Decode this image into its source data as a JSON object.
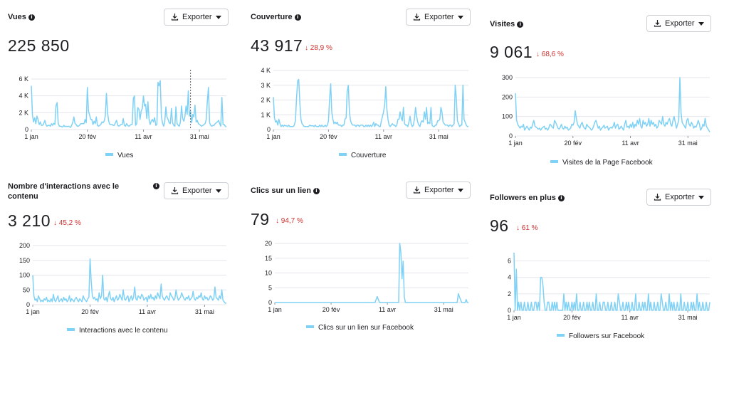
{
  "export_label": "Exporter",
  "series_color": "#7fd1f5",
  "grid_color": "#e4e6eb",
  "delta_color": "#d0312d",
  "chart_data": [
    {
      "id": "vues",
      "type": "line",
      "title": "Vues",
      "total": "225 850",
      "delta": "",
      "legend": "Vues",
      "ylim": [
        0,
        6000
      ],
      "yticks": [
        {
          "v": 0,
          "label": "0"
        },
        {
          "v": 2000,
          "label": "2 K"
        },
        {
          "v": 4000,
          "label": "4 K"
        },
        {
          "v": 6000,
          "label": "6 K"
        }
      ],
      "xticks": [
        {
          "i": 0,
          "label": "1 jan"
        },
        {
          "i": 50,
          "label": "20 fév"
        },
        {
          "i": 100,
          "label": "11 avr"
        },
        {
          "i": 150,
          "label": "31 mai"
        }
      ],
      "values": [
        5200,
        1700,
        900,
        1400,
        700,
        1600,
        1200,
        600,
        900,
        500,
        500,
        650,
        1100,
        600,
        400,
        500,
        500,
        400,
        700,
        500,
        750,
        600,
        2800,
        3200,
        700,
        400,
        400,
        350,
        300,
        500,
        350,
        400,
        350,
        400,
        350,
        250,
        500,
        900,
        1500,
        700,
        600,
        400,
        400,
        500,
        700,
        700,
        700,
        700,
        1200,
        800,
        5000,
        2200,
        1700,
        1200,
        1200,
        600,
        1000,
        700,
        1500,
        500,
        400,
        500,
        600,
        900,
        800,
        1000,
        1600,
        4300,
        2000,
        1000,
        600,
        600,
        600,
        500,
        500,
        800,
        1100,
        500,
        400,
        500,
        600,
        600,
        1300,
        500,
        400,
        700,
        500,
        400,
        500,
        600,
        600,
        3700,
        4000,
        500,
        700,
        2600,
        2400,
        1200,
        2200,
        2500,
        4000,
        2800,
        3000,
        1300,
        3300,
        1300,
        600,
        1000,
        1200,
        900,
        1400,
        500,
        600,
        5600,
        5200,
        5800,
        1600,
        800,
        400,
        900,
        2700,
        1500,
        1200,
        800,
        700,
        2500,
        800,
        500,
        400,
        2700,
        700,
        500,
        400,
        900,
        2800,
        1300,
        1000,
        1500,
        2800,
        1800,
        4600,
        1600,
        2200,
        800,
        1800,
        1500,
        2900,
        900,
        1100,
        700,
        600,
        500,
        400,
        500,
        600,
        700,
        1200,
        3300,
        5000,
        800,
        500,
        400,
        500,
        500,
        700,
        800,
        900,
        1100,
        700,
        400,
        3800,
        600,
        600,
        400,
        300
      ],
      "annotation": {
        "i": 142
      }
    },
    {
      "id": "couverture",
      "type": "line",
      "title": "Couverture",
      "total": "43 917",
      "delta": "↓ 28,9 %",
      "legend": "Couverture",
      "ylim": [
        0,
        4000
      ],
      "yticks": [
        {
          "v": 0,
          "label": "0"
        },
        {
          "v": 1000,
          "label": "1 K"
        },
        {
          "v": 2000,
          "label": "2 K"
        },
        {
          "v": 3000,
          "label": "3 K"
        },
        {
          "v": 4000,
          "label": "4 K"
        }
      ],
      "xticks": [
        {
          "i": 0,
          "label": "1 jan"
        },
        {
          "i": 50,
          "label": "20 fév"
        },
        {
          "i": 100,
          "label": "11 avr"
        },
        {
          "i": 150,
          "label": "31 mai"
        }
      ],
      "values": [
        2200,
        800,
        500,
        600,
        300,
        700,
        400,
        200,
        300,
        200,
        300,
        250,
        250,
        200,
        300,
        200,
        200,
        200,
        200,
        300,
        600,
        2100,
        3300,
        3400,
        1800,
        700,
        400,
        300,
        200,
        200,
        200,
        200,
        200,
        300,
        250,
        250,
        250,
        200,
        300,
        200,
        200,
        200,
        300,
        200,
        300,
        200,
        200,
        300,
        200,
        300,
        600,
        2000,
        3100,
        1200,
        700,
        400,
        500,
        400,
        500,
        300,
        300,
        300,
        200,
        300,
        300,
        700,
        800,
        2600,
        3000,
        1200,
        600,
        400,
        300,
        300,
        300,
        200,
        300,
        300,
        200,
        300,
        300,
        300,
        200,
        200,
        300,
        200,
        300,
        200,
        300,
        200,
        300,
        500,
        200,
        400,
        300,
        300,
        200,
        200,
        600,
        900,
        1200,
        1700,
        2900,
        1400,
        700,
        300,
        200,
        300,
        400,
        300,
        300,
        200,
        300,
        700,
        700,
        1200,
        800,
        600,
        1500,
        400,
        300,
        300,
        200,
        500,
        900,
        400,
        200,
        300,
        700,
        1500,
        900,
        500,
        300,
        200,
        500,
        600,
        500,
        1200,
        700,
        1500,
        400,
        500,
        400,
        1500,
        300,
        200,
        200,
        300,
        300,
        600,
        600,
        700,
        1500,
        1200,
        500,
        400,
        300,
        300,
        300,
        200,
        300,
        300,
        200,
        300,
        400,
        3000,
        2100,
        600,
        400,
        200,
        300,
        300,
        3000,
        700,
        500,
        300,
        200,
        200
      ],
      "annotation": null
    },
    {
      "id": "visites",
      "type": "line",
      "title": "Visites",
      "total": "9 061",
      "delta": "↓ 68,6 %",
      "legend": "Visites de la Page Facebook",
      "ylim": [
        0,
        300
      ],
      "yticks": [
        {
          "v": 0,
          "label": "0"
        },
        {
          "v": 100,
          "label": "100"
        },
        {
          "v": 200,
          "label": "200"
        },
        {
          "v": 300,
          "label": "300"
        }
      ],
      "xticks": [
        {
          "i": 0,
          "label": "1 jan"
        },
        {
          "i": 50,
          "label": "20 fév"
        },
        {
          "i": 100,
          "label": "11 avr"
        },
        {
          "i": 150,
          "label": "31 mai"
        }
      ],
      "values": [
        220,
        80,
        60,
        50,
        40,
        50,
        45,
        60,
        30,
        40,
        50,
        40,
        30,
        45,
        40,
        60,
        80,
        50,
        45,
        40,
        35,
        40,
        30,
        40,
        45,
        50,
        35,
        40,
        30,
        40,
        60,
        55,
        45,
        40,
        80,
        70,
        55,
        40,
        35,
        45,
        60,
        40,
        35,
        50,
        40,
        45,
        30,
        35,
        40,
        60,
        55,
        70,
        130,
        90,
        60,
        50,
        40,
        60,
        70,
        50,
        40,
        35,
        60,
        50,
        45,
        40,
        30,
        35,
        50,
        70,
        80,
        60,
        40,
        50,
        30,
        40,
        45,
        55,
        40,
        45,
        50,
        30,
        40,
        45,
        40,
        50,
        70,
        40,
        55,
        60,
        35,
        40,
        50,
        40,
        30,
        60,
        80,
        45,
        50,
        40,
        60,
        45,
        70,
        40,
        60,
        50,
        80,
        60,
        90,
        50,
        40,
        80,
        60,
        70,
        50,
        60,
        90,
        50,
        80,
        60,
        70,
        50,
        60,
        40,
        50,
        80,
        70,
        60,
        100,
        60,
        50,
        70,
        60,
        80,
        90,
        60,
        50,
        80,
        100,
        70,
        40,
        60,
        80,
        300,
        120,
        70,
        60,
        50,
        40,
        80,
        90,
        60,
        50,
        70,
        60,
        40,
        50,
        45,
        60,
        80,
        60,
        30,
        40,
        60,
        50,
        90,
        50,
        40,
        30,
        20
      ],
      "annotation": null
    },
    {
      "id": "interactions",
      "type": "line",
      "title": "Nombre d'interactions avec le contenu",
      "total": "3 210",
      "delta": "↓ 45,2 %",
      "legend": "Interactions avec le contenu",
      "ylim": [
        0,
        200
      ],
      "yticks": [
        {
          "v": 0,
          "label": "0"
        },
        {
          "v": 50,
          "label": "50"
        },
        {
          "v": 100,
          "label": "100"
        },
        {
          "v": 150,
          "label": "150"
        },
        {
          "v": 200,
          "label": "200"
        }
      ],
      "xticks": [
        {
          "i": 0,
          "label": "1 jan"
        },
        {
          "i": 50,
          "label": "20 fév"
        },
        {
          "i": 100,
          "label": "11 avr"
        },
        {
          "i": 150,
          "label": "31 mai"
        }
      ],
      "values": [
        100,
        30,
        15,
        20,
        10,
        30,
        20,
        10,
        15,
        10,
        20,
        15,
        25,
        10,
        15,
        10,
        20,
        10,
        35,
        15,
        10,
        20,
        30,
        10,
        15,
        20,
        10,
        25,
        15,
        20,
        10,
        15,
        30,
        10,
        20,
        15,
        10,
        20,
        25,
        15,
        10,
        20,
        15,
        10,
        30,
        20,
        15,
        10,
        20,
        25,
        155,
        80,
        30,
        20,
        25,
        15,
        20,
        10,
        40,
        20,
        30,
        100,
        20,
        15,
        25,
        10,
        30,
        45,
        20,
        15,
        25,
        10,
        20,
        30,
        15,
        20,
        35,
        25,
        15,
        50,
        20,
        15,
        25,
        30,
        10,
        20,
        30,
        15,
        25,
        60,
        20,
        15,
        30,
        25,
        20,
        35,
        30,
        15,
        20,
        25,
        10,
        30,
        20,
        35,
        20,
        25,
        15,
        30,
        20,
        40,
        30,
        20,
        70,
        30,
        20,
        15,
        25,
        30,
        20,
        15,
        40,
        30,
        25,
        15,
        20,
        50,
        30,
        15,
        20,
        25,
        40,
        30,
        20,
        15,
        25,
        20,
        30,
        15,
        20,
        25,
        45,
        20,
        15,
        25,
        20,
        30,
        25,
        40,
        20,
        15,
        30,
        20,
        25,
        15,
        20,
        30,
        25,
        15,
        20,
        60,
        25,
        20,
        15,
        30,
        20,
        50,
        15,
        10,
        5,
        5
      ],
      "annotation": null
    },
    {
      "id": "clics",
      "type": "line",
      "title": "Clics sur un lien",
      "total": "79",
      "delta": "↓ 94,7 %",
      "legend": "Clics sur un lien sur Facebook",
      "ylim": [
        0,
        20
      ],
      "yticks": [
        {
          "v": 0,
          "label": "0"
        },
        {
          "v": 5,
          "label": "5"
        },
        {
          "v": 10,
          "label": "10"
        },
        {
          "v": 15,
          "label": "15"
        },
        {
          "v": 20,
          "label": "20"
        }
      ],
      "xticks": [
        {
          "i": 0,
          "label": "1 jan"
        },
        {
          "i": 50,
          "label": "20 fév"
        },
        {
          "i": 100,
          "label": "11 avr"
        },
        {
          "i": 150,
          "label": "31 mai"
        }
      ],
      "values": [
        0,
        0,
        0,
        0,
        0,
        0,
        0,
        0,
        0,
        0,
        0,
        0,
        0,
        0,
        0,
        0,
        0,
        0,
        0,
        0,
        0,
        0,
        0,
        0,
        0,
        0,
        0,
        0,
        0,
        0,
        0,
        0,
        0,
        0,
        0,
        0,
        0,
        0,
        0,
        0,
        0,
        0,
        0,
        0,
        0,
        0,
        0,
        0,
        0,
        0,
        0,
        0,
        0,
        0,
        0,
        0,
        0,
        0,
        0,
        0,
        0,
        0,
        0,
        0,
        0,
        0,
        0,
        0,
        0,
        0,
        0,
        0,
        0,
        0,
        0,
        0,
        0,
        0,
        0,
        0,
        0,
        0,
        0,
        0,
        0,
        0,
        0,
        0,
        0,
        0,
        1,
        2,
        1,
        0,
        0,
        0,
        0,
        0,
        0,
        0,
        0,
        0,
        0,
        0,
        0,
        0,
        0,
        0,
        0,
        0,
        0,
        20,
        17,
        8,
        14,
        2,
        0,
        0,
        0,
        0,
        0,
        0,
        0,
        0,
        0,
        0,
        0,
        0,
        0,
        0,
        0,
        0,
        0,
        0,
        0,
        0,
        0,
        0,
        0,
        0,
        0,
        0,
        0,
        0,
        0,
        0,
        0,
        0,
        0,
        0,
        0,
        0,
        0,
        0,
        0,
        0,
        0,
        0,
        0,
        0,
        0,
        0,
        0,
        3,
        2,
        1,
        0,
        0,
        0,
        0,
        1,
        0,
        0
      ],
      "annotation": null
    },
    {
      "id": "followers",
      "type": "line",
      "title": "Followers en plus",
      "total": "96",
      "delta": "↓ 61 %",
      "legend": "Followers sur Facebook",
      "ylim": [
        0,
        7
      ],
      "yticks": [
        {
          "v": 0,
          "label": "0"
        },
        {
          "v": 2,
          "label": "2"
        },
        {
          "v": 4,
          "label": "4"
        },
        {
          "v": 6,
          "label": "6"
        }
      ],
      "xticks": [
        {
          "i": 0,
          "label": "1 jan"
        },
        {
          "i": 50,
          "label": "20 fév"
        },
        {
          "i": 100,
          "label": "11 avr"
        },
        {
          "i": 150,
          "label": "31 mai"
        }
      ],
      "values": [
        7,
        0,
        5,
        0,
        1,
        0,
        1,
        0,
        0,
        1,
        0,
        0,
        1,
        0,
        0,
        1,
        0,
        0,
        1,
        1,
        0,
        1,
        0,
        4,
        4,
        3,
        1,
        0,
        0,
        1,
        1,
        0,
        0,
        1,
        0,
        1,
        0,
        1,
        0,
        0,
        0,
        0,
        0,
        2,
        0,
        1,
        0,
        1,
        0,
        0,
        1,
        0,
        1,
        0,
        2,
        0,
        0,
        1,
        0,
        0,
        1,
        0,
        0,
        1,
        0,
        1,
        0,
        0,
        1,
        0,
        0,
        2,
        0,
        0,
        1,
        0,
        0,
        1,
        1,
        0,
        0,
        1,
        0,
        0,
        1,
        0,
        0,
        1,
        0,
        0,
        2,
        1,
        0,
        0,
        1,
        0,
        0,
        1,
        0,
        1,
        0,
        0,
        1,
        0,
        0,
        2,
        0,
        0,
        1,
        0,
        0,
        1,
        0,
        1,
        0,
        0,
        2,
        0,
        1,
        0,
        0,
        1,
        0,
        0,
        1,
        0,
        0,
        2,
        1,
        0,
        0,
        1,
        0,
        0,
        2,
        0,
        1,
        0,
        1,
        0,
        0,
        1,
        0,
        0,
        2,
        0,
        0,
        1,
        0,
        0,
        1,
        0,
        0,
        1,
        0,
        1,
        0,
        0,
        2,
        0,
        1,
        0,
        0,
        1,
        0,
        0,
        1,
        0,
        0,
        1
      ]
    }
  ]
}
